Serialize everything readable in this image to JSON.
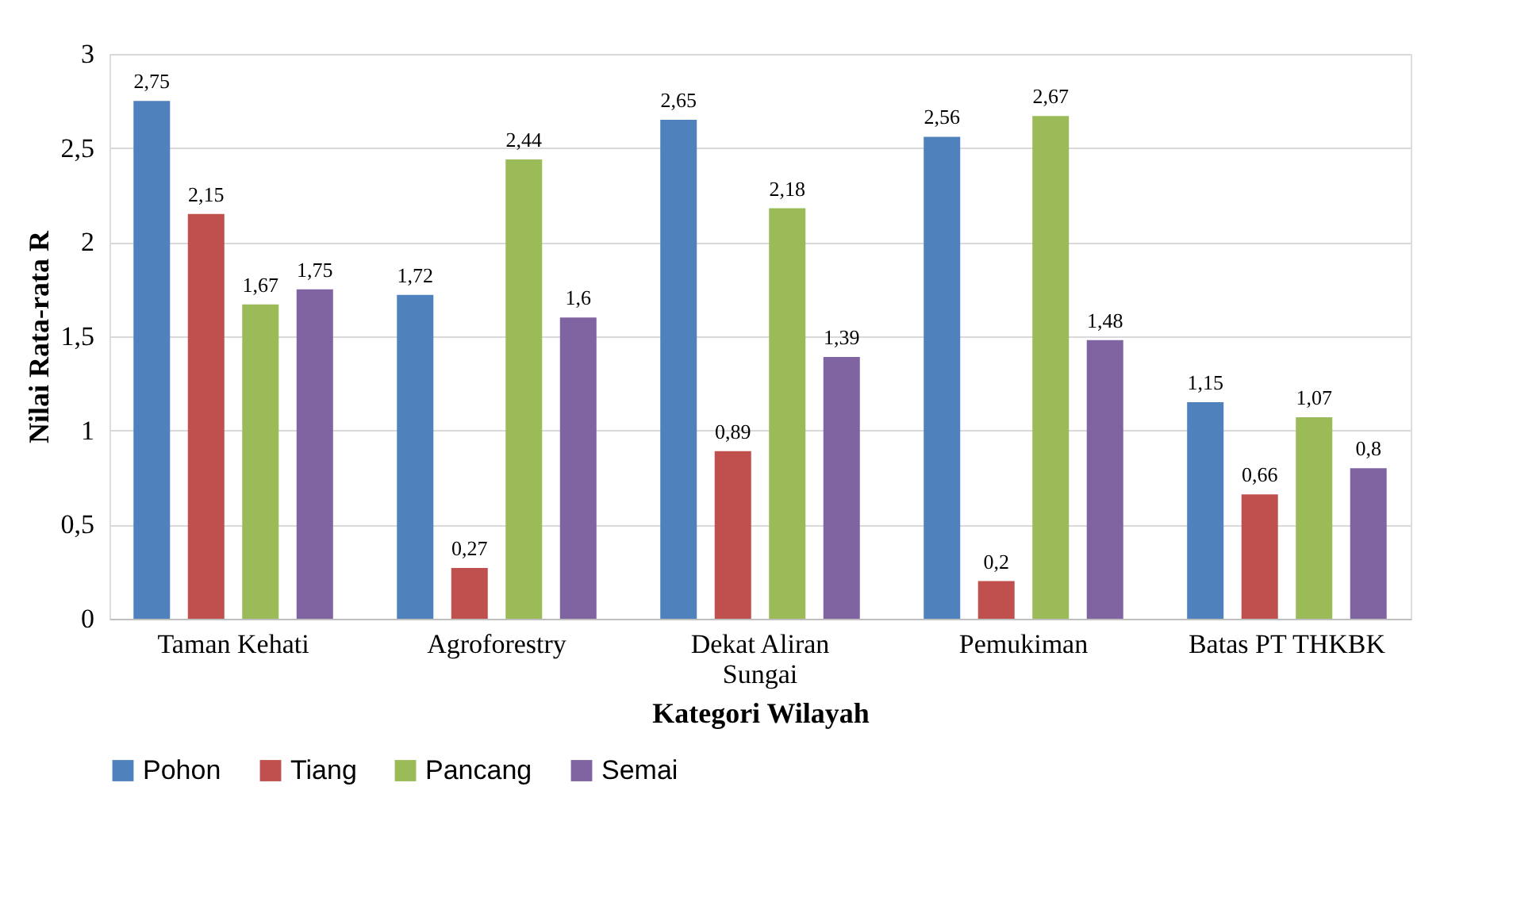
{
  "chart_data": {
    "type": "bar",
    "xlabel": "Kategori Wilayah",
    "ylabel": "Nilai Rata-rata R",
    "categories": [
      "Taman Kehati",
      "Agroforestry",
      "Dekat Aliran Sungai",
      "Pemukiman",
      "Batas PT THKBK"
    ],
    "series": [
      {
        "name": "Pohon",
        "color": "#4f81bd",
        "values": [
          2.75,
          1.72,
          2.65,
          2.56,
          1.15
        ],
        "value_labels": [
          "2,75",
          "1,72",
          "2,65",
          "2,56",
          "1,15"
        ]
      },
      {
        "name": "Tiang",
        "color": "#c0504d",
        "values": [
          2.15,
          0.27,
          0.89,
          0.2,
          0.66
        ],
        "value_labels": [
          "2,15",
          "0,27",
          "0,89",
          "0,2",
          "0,66"
        ]
      },
      {
        "name": "Pancang",
        "color": "#9bbb59",
        "values": [
          1.67,
          2.44,
          2.18,
          2.67,
          1.07
        ],
        "value_labels": [
          "1,67",
          "2,44",
          "2,18",
          "2,67",
          "1,07"
        ]
      },
      {
        "name": "Semai",
        "color": "#8064a2",
        "values": [
          1.75,
          1.6,
          1.39,
          1.48,
          0.8
        ],
        "value_labels": [
          "1,75",
          "1,6",
          "1,39",
          "1,48",
          "0,8"
        ]
      }
    ],
    "ylim": [
      0,
      3
    ],
    "yticks": [
      0,
      {
        "value": 0.5,
        "label": "0,5"
      },
      1,
      {
        "value": 1.5,
        "label": "1,5"
      },
      2,
      {
        "value": 2.5,
        "label": "2,5"
      },
      3
    ],
    "grid": "y",
    "legend": "bottom"
  }
}
